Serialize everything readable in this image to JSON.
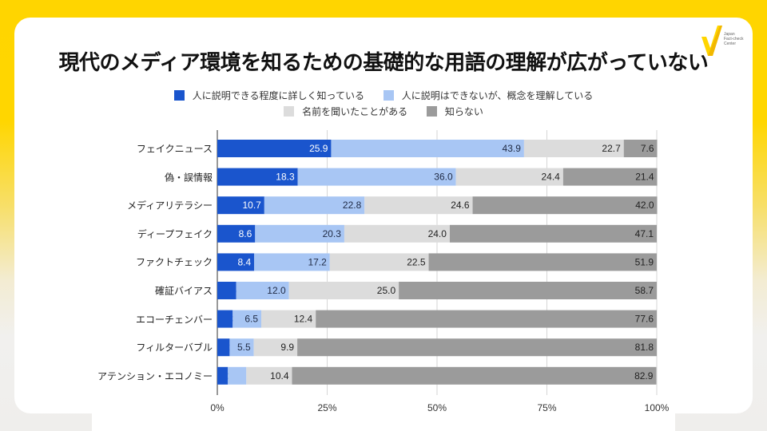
{
  "page": {
    "title": "現代のメディア環境を知るための基礎的な用語の理解が広がっていない",
    "logo": {
      "icon": "checkmark-icon",
      "text_lines": [
        "Japan",
        "Fact-check",
        "Center"
      ]
    }
  },
  "colors": {
    "know_well": "#1a55cd",
    "know_concept": "#a8c6f4",
    "heard_name": "#dcdcdc",
    "dont_know": "#9b9b9b",
    "accent": "#ffd500"
  },
  "chart_data": {
    "type": "bar",
    "orientation": "horizontal",
    "stacked": true,
    "title": "現代のメディア環境を知るための基礎的な用語の理解が広がっていない",
    "xlabel": "",
    "ylabel": "",
    "xlim": [
      0,
      100
    ],
    "x_ticks": [
      "0%",
      "25%",
      "50%",
      "75%",
      "100%"
    ],
    "grid": true,
    "legend_position": "top",
    "categories": [
      "フェイクニュース",
      "偽・誤情報",
      "メディアリテラシー",
      "ディープフェイク",
      "ファクトチェック",
      "確証バイアス",
      "エコーチェンバー",
      "フィルターバブル",
      "アテンション・エコノミー"
    ],
    "series": [
      {
        "name": "人に説明できる程度に詳しく知っている",
        "color_key": "know_well",
        "values": [
          25.9,
          18.3,
          10.7,
          8.6,
          8.4,
          4.3,
          3.5,
          2.8,
          2.4
        ]
      },
      {
        "name": "人に説明はできないが、概念を理解している",
        "color_key": "know_concept",
        "values": [
          43.9,
          36.0,
          22.8,
          20.3,
          17.2,
          12.0,
          6.5,
          5.5,
          4.2
        ]
      },
      {
        "name": "名前を聞いたことがある",
        "color_key": "heard_name",
        "values": [
          22.7,
          24.4,
          24.6,
          24.0,
          22.5,
          25.0,
          12.4,
          9.9,
          10.4
        ]
      },
      {
        "name": "知らない",
        "color_key": "dont_know",
        "values": [
          7.6,
          21.4,
          42.0,
          47.1,
          51.9,
          58.7,
          77.6,
          81.8,
          82.9
        ]
      }
    ],
    "data_labels": [
      [
        "25.9",
        "43.9",
        "22.7",
        "7.6"
      ],
      [
        "18.3",
        "36.0",
        "24.4",
        "21.4"
      ],
      [
        "10.7",
        "22.8",
        "24.6",
        "42.0"
      ],
      [
        "8.6",
        "20.3",
        "24.0",
        "47.1"
      ],
      [
        "8.4",
        "17.2",
        "22.5",
        "51.9"
      ],
      [
        "4.3",
        "12.0",
        "25.0",
        "58.7"
      ],
      [
        "3.5",
        "6.5",
        "12.4",
        "77.6"
      ],
      [
        "2.8",
        "5.5",
        "9.9",
        "81.8"
      ],
      [
        "2.4",
        "4.2",
        "10.4",
        "82.9"
      ]
    ]
  }
}
